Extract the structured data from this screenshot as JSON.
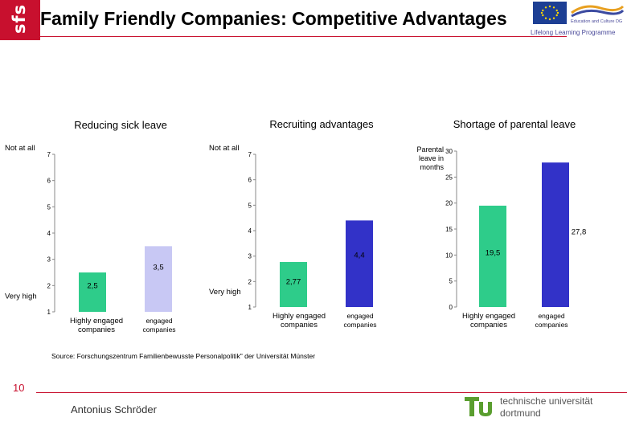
{
  "header": {
    "logo_text": "sfs",
    "title": "Family Friendly Companies: Competitive Advantages",
    "llp_label": "Lifelong Learning Programme",
    "ec_label": "Education and Culture DG"
  },
  "chart_data": [
    {
      "type": "bar",
      "title": "Reducing sick leave",
      "ylabel_top": "Not at all",
      "ylabel_bottom": "Very high",
      "ylim": [
        1,
        7
      ],
      "yticks": [
        "1",
        "2",
        "3",
        "4",
        "5",
        "6",
        "7"
      ],
      "categories": [
        "Highly engaged companies",
        "engaged companies"
      ],
      "values": [
        2.5,
        3.5
      ],
      "value_labels": [
        "2,5",
        "3,5"
      ],
      "colors": [
        "#2ecc8a",
        "#c8c8f4"
      ]
    },
    {
      "type": "bar",
      "title": "Recruiting advantages",
      "ylabel_top": "Not at all",
      "ylabel_bottom": "Very high",
      "ylim": [
        1,
        7
      ],
      "yticks": [
        "1",
        "2",
        "3",
        "4",
        "5",
        "6",
        "7"
      ],
      "categories": [
        "Highly engaged companies",
        "engaged companies"
      ],
      "values": [
        2.77,
        4.4
      ],
      "value_labels": [
        "2,77",
        "4,4"
      ],
      "colors": [
        "#2ecc8a",
        "#3232c8"
      ]
    },
    {
      "type": "bar",
      "title": "Shortage of parental leave",
      "ylabel": "Parental leave in months",
      "ylim": [
        0,
        30
      ],
      "yticks": [
        "0",
        "5",
        "10",
        "15",
        "20",
        "25",
        "30"
      ],
      "categories": [
        "Highly engaged companies",
        "engaged companies"
      ],
      "values": [
        19.5,
        27.8
      ],
      "value_labels": [
        "19,5",
        "27,8"
      ],
      "colors": [
        "#2ecc8a",
        "#3232c8"
      ]
    }
  ],
  "footer": {
    "source": "Source: Forschungszentrum Familienbewusste Personalpolitik\" der Universität Münster",
    "page_number": "10",
    "author": "Antonius Schröder",
    "university_line1": "technische universität",
    "university_line2": "dortmund"
  }
}
